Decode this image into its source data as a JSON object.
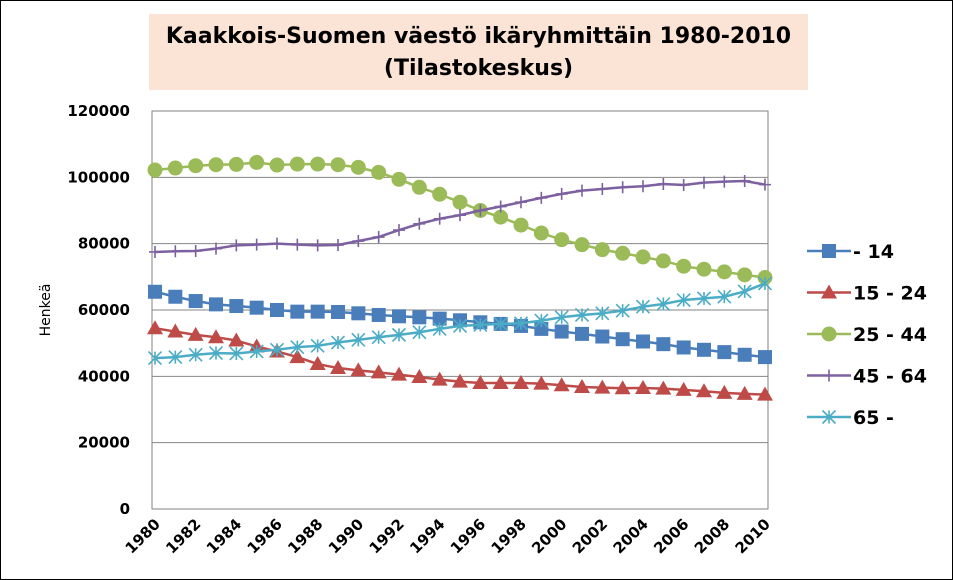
{
  "chart_data": {
    "type": "line",
    "title": "Kaakkois-Suomen väestö ikäryhmittäin 1980-2010",
    "subtitle": "(Tilastokeskus)",
    "ylabel": "Henkeä",
    "xlabel": "",
    "ylim": [
      0,
      120000
    ],
    "yticks": [
      0,
      20000,
      40000,
      60000,
      80000,
      100000,
      120000
    ],
    "ytick_labels": [
      "0",
      "20000",
      "40000",
      "60000",
      "80000",
      "100000",
      "120000"
    ],
    "xlim": [
      1980,
      2010
    ],
    "xtick_labels": [
      "1980",
      "1982",
      "1984",
      "1986",
      "1988",
      "1990",
      "1992",
      "1994",
      "1996",
      "1998",
      "2000",
      "2002",
      "2004",
      "2006",
      "2008",
      "2010"
    ],
    "grid": "horizontal",
    "legend_position": "right",
    "x": [
      1980,
      1981,
      1982,
      1983,
      1984,
      1985,
      1986,
      1987,
      1988,
      1989,
      1990,
      1991,
      1992,
      1993,
      1994,
      1995,
      1996,
      1997,
      1998,
      1999,
      2000,
      2001,
      2002,
      2003,
      2004,
      2005,
      2006,
      2007,
      2008,
      2009,
      2010
    ],
    "series": [
      {
        "name": "- 14",
        "color": "#4a7ebb",
        "marker": "square",
        "values": [
          65500,
          64000,
          62700,
          61700,
          61200,
          60700,
          60000,
          59500,
          59500,
          59400,
          59000,
          58500,
          58100,
          57800,
          57400,
          56900,
          56300,
          55800,
          55200,
          54300,
          53500,
          52800,
          52000,
          51200,
          50500,
          49700,
          48700,
          48000,
          47300,
          46500,
          45800
        ]
      },
      {
        "name": "15 - 24",
        "color": "#be4b48",
        "marker": "triangle",
        "values": [
          54500,
          53500,
          52500,
          51800,
          50800,
          49000,
          47500,
          45800,
          43700,
          42500,
          41800,
          41200,
          40500,
          39800,
          39000,
          38400,
          38000,
          38000,
          38000,
          37800,
          37300,
          36800,
          36600,
          36400,
          36500,
          36300,
          35900,
          35500,
          35000,
          34700,
          34500
        ]
      },
      {
        "name": "25 - 44",
        "color": "#9bbb59",
        "marker": "circle",
        "values": [
          102200,
          102800,
          103500,
          103800,
          103900,
          104500,
          103700,
          104000,
          104000,
          103800,
          103000,
          101500,
          99400,
          97000,
          94900,
          92500,
          90000,
          88000,
          85600,
          83200,
          81200,
          79700,
          78200,
          77100,
          76000,
          74800,
          73200,
          72300,
          71500,
          70600,
          69800
        ]
      },
      {
        "name": "45 - 64",
        "color": "#7d60a0",
        "marker": "plus",
        "values": [
          77500,
          77700,
          77800,
          78500,
          79500,
          79700,
          80000,
          79700,
          79500,
          79600,
          80800,
          82000,
          84100,
          86000,
          87500,
          88600,
          90000,
          91200,
          92500,
          93800,
          95000,
          96000,
          96500,
          97000,
          97300,
          98000,
          97700,
          98400,
          98700,
          98900,
          97800
        ]
      },
      {
        "name": "65 -",
        "color": "#4bacc6",
        "marker": "star",
        "values": [
          45500,
          45800,
          46500,
          47000,
          46900,
          47500,
          48000,
          48800,
          49200,
          50200,
          51000,
          51800,
          52500,
          53300,
          54300,
          55200,
          55500,
          55800,
          56000,
          56800,
          57800,
          58500,
          59000,
          59800,
          61000,
          61800,
          63000,
          63500,
          64000,
          65600,
          68000
        ]
      }
    ]
  }
}
